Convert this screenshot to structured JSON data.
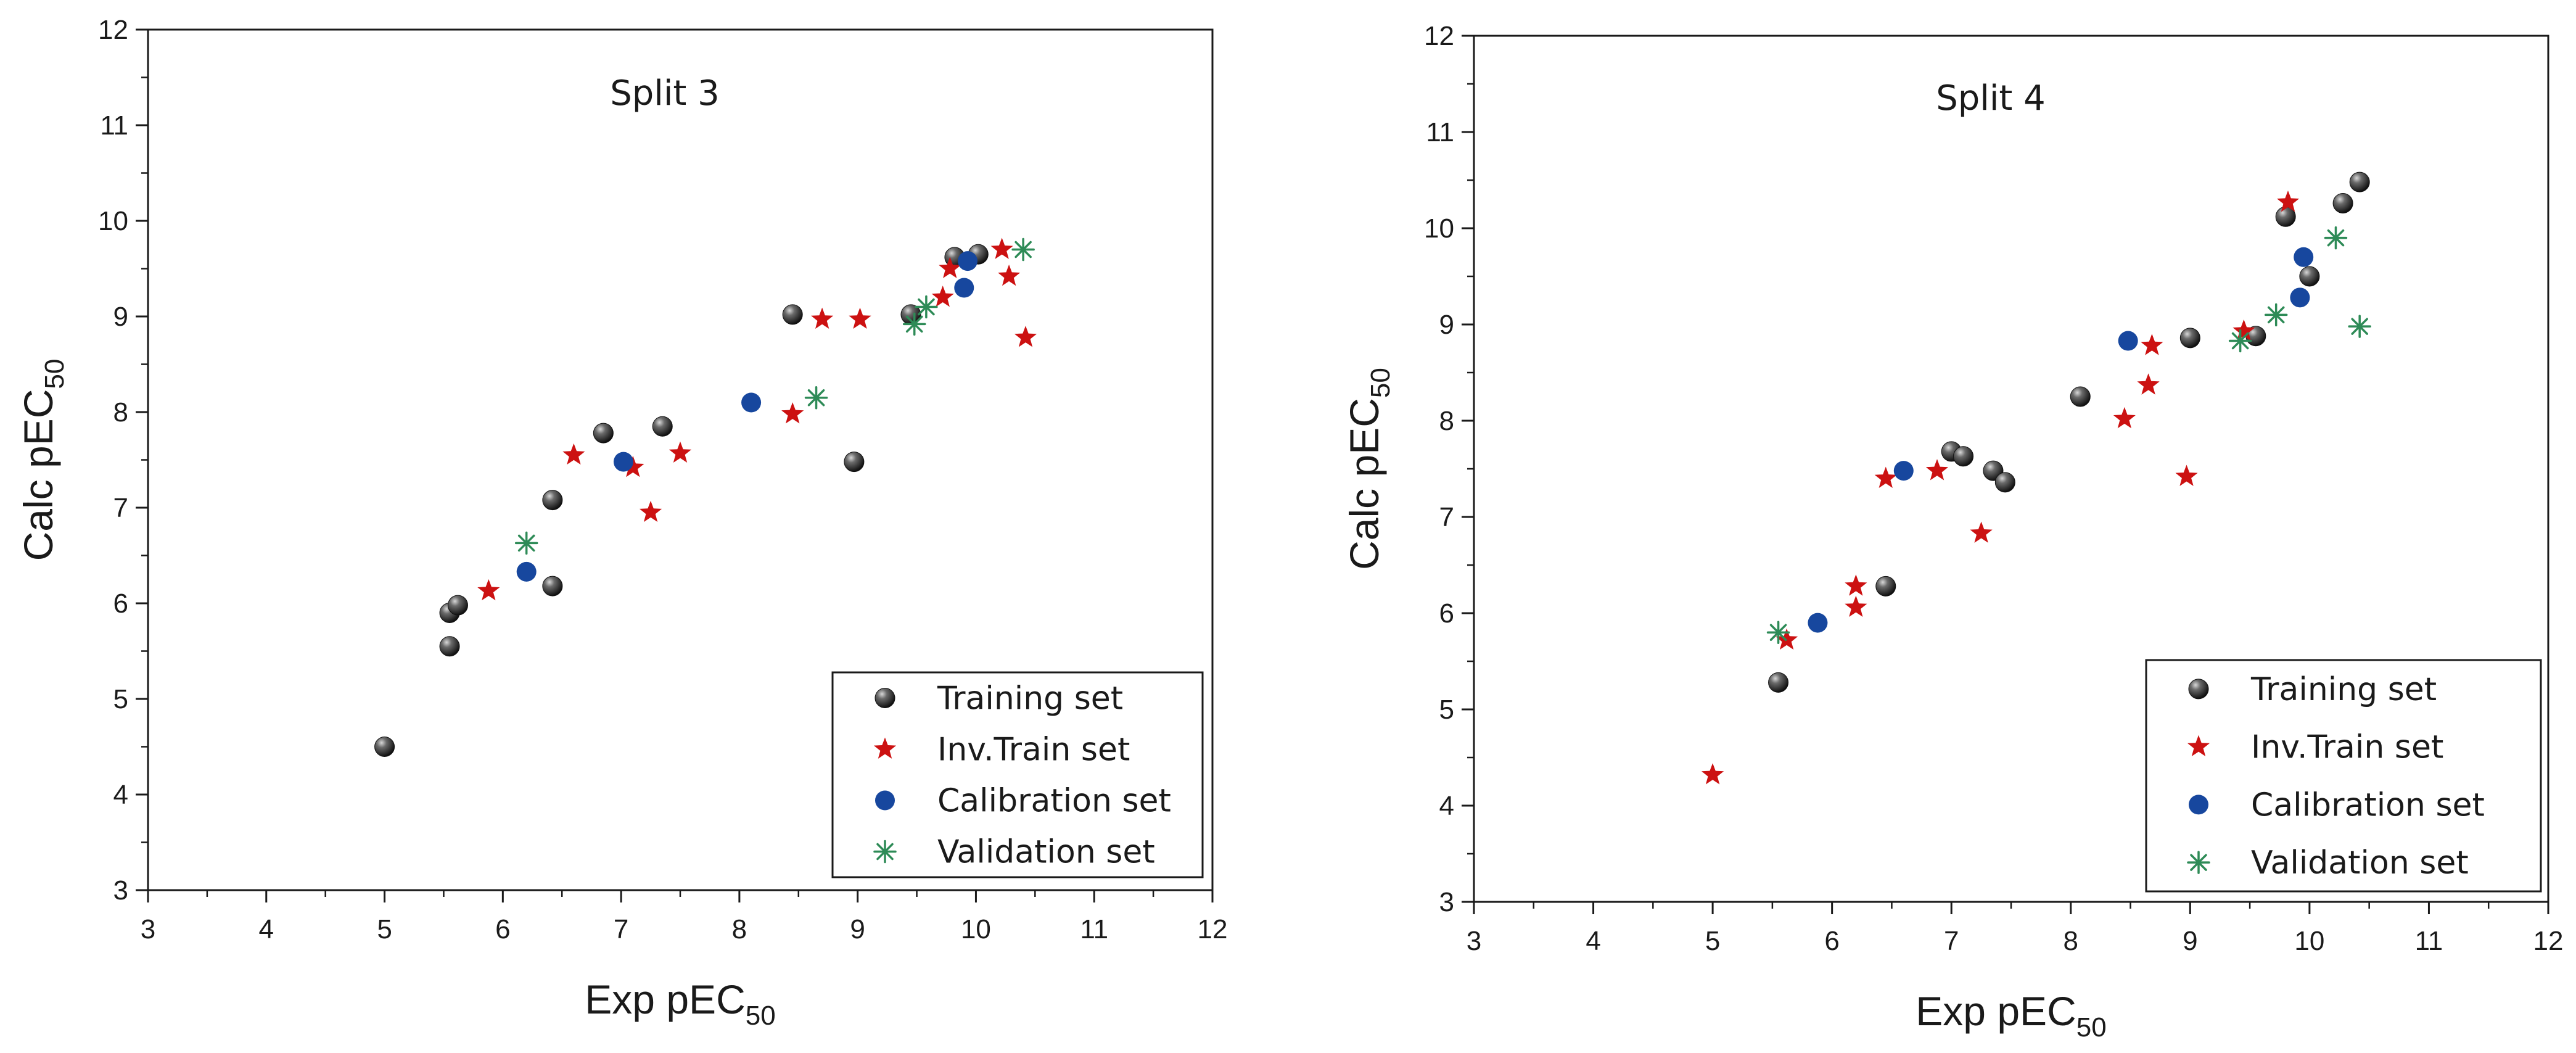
{
  "colors": {
    "training": "#3a3a3a",
    "inv_train": "#cc1111",
    "calibration": "#17479e",
    "validation": "#2e8b57",
    "axis": "#1a1a1a"
  },
  "chart_data": [
    {
      "type": "scatter",
      "title": "Split 3",
      "xlabel": "Exp pEC",
      "xlabel_sub": "50",
      "ylabel": "Calc pEC",
      "ylabel_sub": "50",
      "xlim": [
        3,
        12
      ],
      "ylim": [
        3,
        12
      ],
      "xticks": [
        "3",
        "4",
        "5",
        "6",
        "7",
        "8",
        "9",
        "10",
        "11",
        "12"
      ],
      "yticks": [
        "3",
        "4",
        "5",
        "6",
        "7",
        "8",
        "9",
        "10",
        "11",
        "12"
      ],
      "legend_position": "bottom-right",
      "series": [
        {
          "key": "training",
          "name": "Training set",
          "marker": "ball",
          "points": [
            [
              5.0,
              4.5
            ],
            [
              5.55,
              5.55
            ],
            [
              5.55,
              5.9
            ],
            [
              5.62,
              5.98
            ],
            [
              6.42,
              6.18
            ],
            [
              6.42,
              7.08
            ],
            [
              6.85,
              7.78
            ],
            [
              7.35,
              7.85
            ],
            [
              8.45,
              9.02
            ],
            [
              8.97,
              7.48
            ],
            [
              9.45,
              9.02
            ],
            [
              9.82,
              9.62
            ],
            [
              10.02,
              9.65
            ]
          ]
        },
        {
          "key": "inv_train",
          "name": "Inv.Train set",
          "marker": "star",
          "points": [
            [
              5.88,
              6.13
            ],
            [
              6.6,
              7.55
            ],
            [
              7.1,
              7.42
            ],
            [
              7.25,
              6.95
            ],
            [
              7.5,
              7.57
            ],
            [
              8.45,
              7.98
            ],
            [
              8.7,
              8.97
            ],
            [
              9.02,
              8.97
            ],
            [
              9.72,
              9.2
            ],
            [
              9.78,
              9.5
            ],
            [
              10.22,
              9.7
            ],
            [
              10.28,
              9.42
            ],
            [
              10.42,
              8.78
            ]
          ]
        },
        {
          "key": "calibration",
          "name": "Calibration set",
          "marker": "dot",
          "points": [
            [
              6.2,
              6.33
            ],
            [
              7.02,
              7.48
            ],
            [
              8.1,
              8.1
            ],
            [
              9.9,
              9.3
            ],
            [
              9.93,
              9.58
            ]
          ]
        },
        {
          "key": "validation",
          "name": "Validation set",
          "marker": "asterisk",
          "points": [
            [
              6.2,
              6.63
            ],
            [
              8.65,
              8.15
            ],
            [
              9.48,
              8.92
            ],
            [
              9.58,
              9.1
            ],
            [
              10.4,
              9.7
            ]
          ]
        }
      ]
    },
    {
      "type": "scatter",
      "title": "Split 4",
      "xlabel": "Exp pEC",
      "xlabel_sub": "50",
      "ylabel": "Calc pEC",
      "ylabel_sub": "50",
      "xlim": [
        3,
        12
      ],
      "ylim": [
        3,
        12
      ],
      "xticks": [
        "3",
        "4",
        "5",
        "6",
        "7",
        "8",
        "9",
        "10",
        "11",
        "12"
      ],
      "yticks": [
        "3",
        "4",
        "5",
        "6",
        "7",
        "8",
        "9",
        "10",
        "11",
        "12"
      ],
      "legend_position": "bottom-right",
      "series": [
        {
          "key": "training",
          "name": "Training set",
          "marker": "ball",
          "points": [
            [
              5.55,
              5.28
            ],
            [
              6.45,
              6.28
            ],
            [
              7.0,
              7.68
            ],
            [
              7.1,
              7.63
            ],
            [
              7.35,
              7.48
            ],
            [
              7.45,
              7.36
            ],
            [
              8.08,
              8.25
            ],
            [
              9.0,
              8.86
            ],
            [
              9.55,
              8.88
            ],
            [
              9.8,
              10.12
            ],
            [
              10.0,
              9.5
            ],
            [
              10.28,
              10.26
            ],
            [
              10.42,
              10.48
            ]
          ]
        },
        {
          "key": "inv_train",
          "name": "Inv.Train set",
          "marker": "star",
          "points": [
            [
              5.0,
              4.32
            ],
            [
              5.62,
              5.72
            ],
            [
              6.2,
              6.28
            ],
            [
              6.2,
              6.06
            ],
            [
              6.45,
              7.4
            ],
            [
              6.88,
              7.48
            ],
            [
              7.25,
              6.83
            ],
            [
              8.45,
              8.02
            ],
            [
              8.65,
              8.37
            ],
            [
              8.68,
              8.78
            ],
            [
              8.97,
              7.42
            ],
            [
              9.45,
              8.93
            ],
            [
              9.82,
              10.27
            ]
          ]
        },
        {
          "key": "calibration",
          "name": "Calibration set",
          "marker": "dot",
          "points": [
            [
              5.88,
              5.9
            ],
            [
              6.6,
              7.48
            ],
            [
              8.48,
              8.83
            ],
            [
              9.92,
              9.28
            ],
            [
              9.95,
              9.7
            ]
          ]
        },
        {
          "key": "validation",
          "name": "Validation set",
          "marker": "asterisk",
          "points": [
            [
              5.55,
              5.8
            ],
            [
              9.42,
              8.83
            ],
            [
              9.72,
              9.1
            ],
            [
              10.22,
              9.9
            ],
            [
              10.42,
              8.98
            ]
          ]
        }
      ]
    }
  ]
}
